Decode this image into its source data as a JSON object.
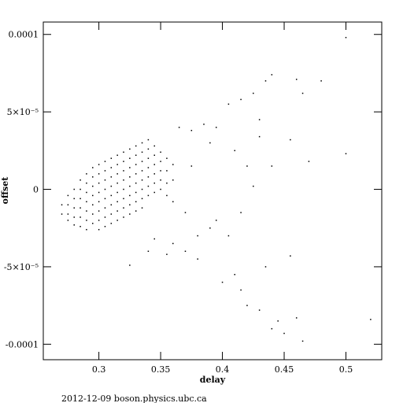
{
  "chart_data": {
    "type": "scatter",
    "xlabel": "delay",
    "ylabel": "offset",
    "footer": "2012-12-09  boson.physics.ubc.ca",
    "color": "#000000",
    "xlim": [
      0.255,
      0.529
    ],
    "ylim": [
      -0.00011,
      0.000108
    ],
    "xticks": [
      0.3,
      0.35,
      0.4,
      0.45,
      0.5
    ],
    "yticks": [
      -0.0001,
      {
        "value": -5e-05,
        "label": "-5×10⁻⁵"
      },
      0,
      {
        "value": 5e-05,
        "label": "5×10⁻⁵"
      },
      0.0001
    ],
    "x": [
      0.27,
      0.27,
      0.275,
      0.275,
      0.275,
      0.275,
      0.28,
      0.28,
      0.28,
      0.28,
      0.28,
      0.285,
      0.285,
      0.285,
      0.285,
      0.285,
      0.285,
      0.29,
      0.29,
      0.29,
      0.29,
      0.29,
      0.29,
      0.29,
      0.295,
      0.295,
      0.295,
      0.295,
      0.295,
      0.295,
      0.295,
      0.3,
      0.3,
      0.3,
      0.3,
      0.3,
      0.3,
      0.3,
      0.3,
      0.305,
      0.305,
      0.305,
      0.305,
      0.305,
      0.305,
      0.305,
      0.305,
      0.31,
      0.31,
      0.31,
      0.31,
      0.31,
      0.31,
      0.31,
      0.31,
      0.315,
      0.315,
      0.315,
      0.315,
      0.315,
      0.315,
      0.315,
      0.315,
      0.32,
      0.32,
      0.32,
      0.32,
      0.32,
      0.32,
      0.32,
      0.32,
      0.325,
      0.325,
      0.325,
      0.325,
      0.325,
      0.325,
      0.325,
      0.325,
      0.33,
      0.33,
      0.33,
      0.33,
      0.33,
      0.33,
      0.33,
      0.33,
      0.335,
      0.335,
      0.335,
      0.335,
      0.335,
      0.335,
      0.335,
      0.335,
      0.34,
      0.34,
      0.34,
      0.34,
      0.34,
      0.34,
      0.34,
      0.345,
      0.345,
      0.345,
      0.345,
      0.345,
      0.345,
      0.35,
      0.35,
      0.35,
      0.35,
      0.35,
      0.355,
      0.355,
      0.355,
      0.355,
      0.36,
      0.36,
      0.36,
      0.365,
      0.375,
      0.385,
      0.39,
      0.375,
      0.37,
      0.36,
      0.37,
      0.38,
      0.395,
      0.405,
      0.415,
      0.41,
      0.42,
      0.425,
      0.43,
      0.44,
      0.455,
      0.47,
      0.5,
      0.405,
      0.415,
      0.425,
      0.435,
      0.44,
      0.46,
      0.465,
      0.48,
      0.5,
      0.43,
      0.395,
      0.4,
      0.41,
      0.415,
      0.42,
      0.43,
      0.435,
      0.445,
      0.45,
      0.455,
      0.46,
      0.465,
      0.44,
      0.52,
      0.34,
      0.355,
      0.325,
      0.345,
      0.38,
      0.39
    ],
    "values": [
      -1e-05,
      -1.6e-05,
      -4e-06,
      -1e-05,
      -1.6e-05,
      -2e-05,
      0,
      -6e-06,
      -1.2e-05,
      -1.8e-05,
      -2.3e-05,
      6e-06,
      0,
      -6e-06,
      -1.2e-05,
      -1.8e-05,
      -2.4e-05,
      1e-05,
      4e-06,
      -2e-06,
      -8e-06,
      -1.4e-05,
      -2e-05,
      -2.6e-05,
      1.4e-05,
      8e-06,
      2e-06,
      -4e-06,
      -1e-05,
      -1.6e-05,
      -2.2e-05,
      1.6e-05,
      1e-05,
      4e-06,
      -2e-06,
      -8e-06,
      -1.4e-05,
      -2e-05,
      -2.6e-05,
      1.8e-05,
      1.2e-05,
      6e-06,
      0,
      -6e-06,
      -1.2e-05,
      -1.8e-05,
      -2.4e-05,
      2e-05,
      1.4e-05,
      8e-06,
      2e-06,
      -4e-06,
      -1e-05,
      -1.6e-05,
      -2.2e-05,
      2.2e-05,
      1.6e-05,
      1e-05,
      4e-06,
      -2e-06,
      -8e-06,
      -1.4e-05,
      -2e-05,
      2.4e-05,
      1.8e-05,
      1.2e-05,
      6e-06,
      0,
      -6e-06,
      -1.2e-05,
      -1.8e-05,
      2.6e-05,
      2e-05,
      1.4e-05,
      8e-06,
      2e-06,
      -4e-06,
      -1e-05,
      -1.6e-05,
      2.8e-05,
      2.2e-05,
      1.6e-05,
      1e-05,
      4e-06,
      -2e-06,
      -8e-06,
      -1.4e-05,
      3e-05,
      2.4e-05,
      1.8e-05,
      1.2e-05,
      6e-06,
      0,
      -6e-06,
      -1.2e-05,
      3.2e-05,
      2.6e-05,
      2e-05,
      1.4e-05,
      8e-06,
      2e-06,
      -4e-06,
      2.8e-05,
      2.2e-05,
      1.6e-05,
      1e-05,
      4e-06,
      -2e-06,
      2.4e-05,
      1.8e-05,
      1.2e-05,
      6e-06,
      0,
      2e-05,
      1.2e-05,
      4e-06,
      -4e-06,
      1.6e-05,
      6e-06,
      -8e-06,
      4e-05,
      3.8e-05,
      4.2e-05,
      3e-05,
      1.5e-05,
      -1.5e-05,
      -3.5e-05,
      -4e-05,
      -3e-05,
      -2e-05,
      -3e-05,
      -1.5e-05,
      2.5e-05,
      1.5e-05,
      2e-06,
      3.4e-05,
      1.5e-05,
      3.2e-05,
      1.8e-05,
      2.3e-05,
      5.5e-05,
      5.8e-05,
      6.2e-05,
      7e-05,
      7.4e-05,
      7.1e-05,
      6.2e-05,
      7e-05,
      9.8e-05,
      4.5e-05,
      4e-05,
      -6e-05,
      -5.5e-05,
      -6.5e-05,
      -7.5e-05,
      -7.8e-05,
      -5e-05,
      -8.5e-05,
      -9.3e-05,
      -4.3e-05,
      -8.3e-05,
      -9.8e-05,
      -9e-05,
      -8.4e-05,
      -4e-05,
      -4.2e-05,
      -4.9e-05,
      -3.2e-05,
      -4.5e-05,
      -2.5e-05
    ]
  }
}
